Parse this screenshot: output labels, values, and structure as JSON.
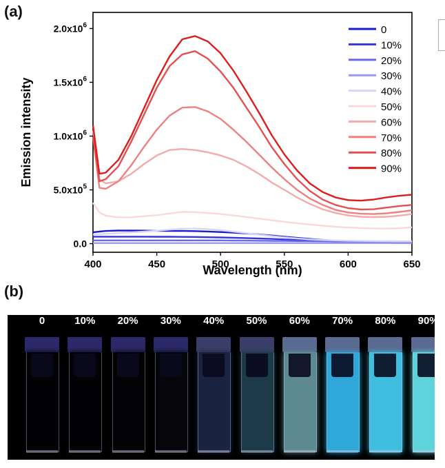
{
  "panel_a_label": "(a)",
  "panel_b_label": "(b)",
  "chart_data": {
    "type": "line",
    "title": "",
    "xlabel": "Wavelength (nm)",
    "ylabel": "Emission intensity",
    "xlim": [
      400,
      650
    ],
    "ylim": [
      -80000,
      2150000
    ],
    "x_ticks": [
      400,
      450,
      500,
      550,
      600,
      650
    ],
    "x_tick_labels": [
      "400",
      "450",
      "500",
      "550",
      "600",
      "650"
    ],
    "y_ticks": [
      0,
      500000,
      1000000,
      1500000,
      2000000
    ],
    "y_tick_labels": [
      {
        "mantissa": "0.0",
        "exponent": ""
      },
      {
        "mantissa": "5.0x10",
        "exponent": "5"
      },
      {
        "mantissa": "1.0x10",
        "exponent": "6"
      },
      {
        "mantissa": "1.5x10",
        "exponent": "6"
      },
      {
        "mantissa": "2.0x10",
        "exponent": "6"
      }
    ],
    "legend_position": "top-right",
    "x": [
      400,
      405,
      410,
      420,
      430,
      440,
      450,
      460,
      470,
      480,
      490,
      500,
      510,
      520,
      530,
      540,
      550,
      560,
      570,
      580,
      590,
      600,
      610,
      620,
      630,
      640,
      650
    ],
    "series": [
      {
        "name": "0",
        "color": "#1a1ad0",
        "values": [
          105000,
          112000,
          118000,
          122000,
          122000,
          121000,
          119000,
          118000,
          118000,
          117000,
          113000,
          108000,
          102000,
          95000,
          86000,
          76000,
          65000,
          54000,
          44000,
          35000,
          27000,
          20000,
          15000,
          11000,
          8000,
          6000,
          5000
        ]
      },
      {
        "name": "10%",
        "color": "#3535e0",
        "values": [
          65000,
          65000,
          65000,
          65000,
          65000,
          65000,
          64000,
          64000,
          63000,
          62000,
          60000,
          58000,
          55000,
          52000,
          48000,
          44000,
          39000,
          34000,
          29000,
          25000,
          21000,
          18000,
          15000,
          13000,
          11000,
          10000,
          9000
        ]
      },
      {
        "name": "20%",
        "color": "#6a6ae8",
        "values": [
          30000,
          30000,
          30000,
          30000,
          30000,
          30000,
          30000,
          30000,
          30000,
          30000,
          30000,
          30000,
          29000,
          28000,
          27000,
          26000,
          25000,
          24000,
          23000,
          22000,
          21000,
          20000,
          19000,
          18000,
          17000,
          16000,
          15000
        ]
      },
      {
        "name": "30%",
        "color": "#9a9af0",
        "values": [
          5000,
          5000,
          5000,
          5000,
          5000,
          5000,
          5000,
          5000,
          5000,
          5000,
          5000,
          5000,
          5000,
          5000,
          5000,
          5000,
          5000,
          5000,
          5000,
          5000,
          5000,
          5000,
          5000,
          5000,
          5000,
          5000,
          5000
        ]
      },
      {
        "name": "40%",
        "color": "#d6d6f8",
        "values": [
          85000,
          88000,
          92000,
          98000,
          105000,
          112000,
          120000,
          130000,
          138000,
          140000,
          135000,
          125000,
          112000,
          98000,
          84000,
          70000,
          58000,
          48000,
          40000,
          34000,
          30000,
          27000,
          25000,
          24000,
          23000,
          22000,
          22000
        ]
      },
      {
        "name": "50%",
        "color": "#fbd8d8",
        "values": [
          380000,
          290000,
          260000,
          245000,
          245000,
          255000,
          265000,
          280000,
          295000,
          293000,
          285000,
          275000,
          262000,
          248000,
          233000,
          218000,
          203000,
          190000,
          178000,
          167000,
          158000,
          150000,
          145000,
          142000,
          140000,
          143000,
          152000
        ]
      },
      {
        "name": "60%",
        "color": "#f4aaaa",
        "values": [
          1050000,
          600000,
          560000,
          580000,
          650000,
          740000,
          820000,
          870000,
          880000,
          870000,
          850000,
          820000,
          780000,
          720000,
          650000,
          570000,
          500000,
          430000,
          370000,
          320000,
          285000,
          262000,
          250000,
          247000,
          250000,
          260000,
          275000
        ]
      },
      {
        "name": "70%",
        "color": "#ee8080",
        "values": [
          1000000,
          520000,
          510000,
          580000,
          730000,
          900000,
          1060000,
          1190000,
          1265000,
          1270000,
          1230000,
          1160000,
          1060000,
          950000,
          830000,
          710000,
          600000,
          500000,
          420000,
          360000,
          315000,
          290000,
          278000,
          275000,
          282000,
          295000,
          310000
        ]
      },
      {
        "name": "80%",
        "color": "#e45050",
        "values": [
          1000000,
          580000,
          600000,
          720000,
          950000,
          1200000,
          1450000,
          1650000,
          1760000,
          1790000,
          1720000,
          1600000,
          1450000,
          1270000,
          1090000,
          900000,
          740000,
          600000,
          490000,
          410000,
          360000,
          330000,
          318000,
          320000,
          335000,
          350000,
          360000
        ]
      },
      {
        "name": "90%",
        "color": "#dd1c1c",
        "values": [
          1100000,
          650000,
          660000,
          780000,
          1000000,
          1260000,
          1520000,
          1740000,
          1900000,
          1930000,
          1880000,
          1770000,
          1610000,
          1420000,
          1220000,
          1010000,
          830000,
          680000,
          560000,
          480000,
          430000,
          405000,
          400000,
          410000,
          430000,
          445000,
          455000
        ]
      }
    ]
  },
  "photo": {
    "vials": [
      {
        "label": "0",
        "glow": "#020205"
      },
      {
        "label": "10%",
        "glow": "#020205"
      },
      {
        "label": "20%",
        "glow": "#030306"
      },
      {
        "label": "30%",
        "glow": "#05050a"
      },
      {
        "label": "40%",
        "glow": "#1a2440"
      },
      {
        "label": "50%",
        "glow": "#1c3a48"
      },
      {
        "label": "60%",
        "glow": "#5d8a90"
      },
      {
        "label": "70%",
        "glow": "#2fa7d8"
      },
      {
        "label": "80%",
        "glow": "#3fbee0"
      },
      {
        "label": "90%",
        "glow": "#5ed2da"
      }
    ]
  }
}
